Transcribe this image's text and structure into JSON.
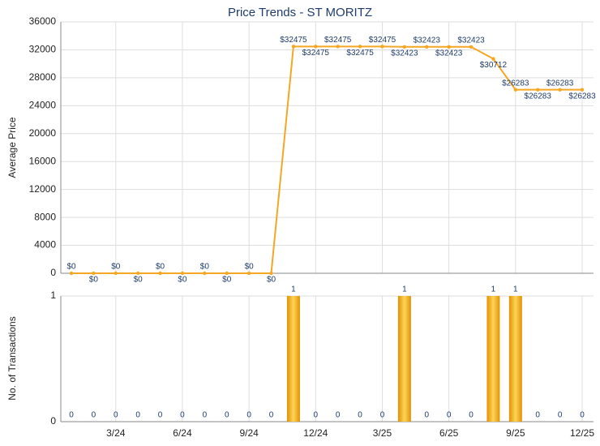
{
  "chart_data": [
    {
      "type": "line",
      "title": "Price Trends - ST MORITZ",
      "y_label": "Average Price",
      "ylim": [
        0,
        36000
      ],
      "yticks": [
        0,
        4000,
        8000,
        12000,
        16000,
        20000,
        24000,
        28000,
        32000,
        36000
      ],
      "grid": true,
      "series": [
        {
          "color": "#f5a623",
          "values": [
            0,
            0,
            0,
            0,
            0,
            0,
            0,
            0,
            0,
            0,
            32475,
            32475,
            32475,
            32475,
            32475,
            32423,
            32423,
            32423,
            32423,
            30712,
            26283,
            26283,
            26283,
            26283
          ],
          "value_labels": [
            "$0",
            "$0",
            "$0",
            "$0",
            "$0",
            "$0",
            "$0",
            "$0",
            "$0",
            "$0",
            "$32475",
            "$32475",
            "$32475",
            "$32475",
            "$32475",
            "$32423",
            "$32423",
            "$32423",
            "$32423",
            "$30712",
            "$26283",
            "$26283",
            "$26283",
            "$26283"
          ]
        }
      ]
    },
    {
      "type": "bar",
      "y_label": "No. of Transactions",
      "categories": [
        null,
        null,
        "3/24",
        null,
        null,
        "6/24",
        null,
        null,
        "9/24",
        null,
        null,
        "12/24",
        null,
        null,
        "3/25",
        null,
        null,
        "6/25",
        null,
        null,
        "9/25",
        null,
        null,
        "12/25"
      ],
      "ylim": [
        0,
        1
      ],
      "yticks": [
        0,
        1
      ],
      "grid": true,
      "color": "#f0a30a",
      "values": [
        0,
        0,
        0,
        0,
        0,
        0,
        0,
        0,
        0,
        0,
        1,
        0,
        0,
        0,
        0,
        1,
        0,
        0,
        0,
        1,
        1,
        0,
        0,
        0
      ]
    }
  ]
}
